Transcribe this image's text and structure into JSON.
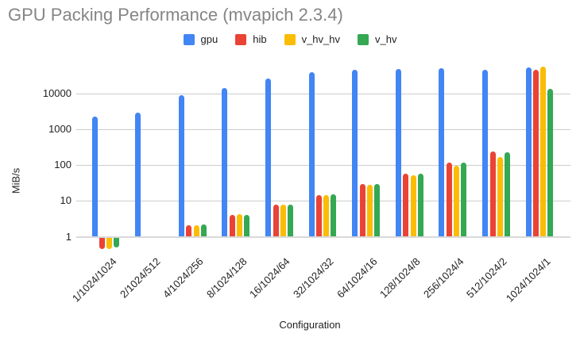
{
  "title": "GPU Packing Performance (mvapich 2.3.4)",
  "colors": {
    "gpu": "#4285F4",
    "hib": "#EA4335",
    "v_hv_hv": "#FBBC04",
    "v_hv": "#34A853",
    "title_text": "#858585",
    "gridline": "#cccccc",
    "axis_text": "#222222"
  },
  "chart_data": {
    "type": "bar",
    "title": "GPU Packing Performance (mvapich 2.3.4)",
    "xlabel": "Configuration",
    "ylabel": "MiB/s",
    "y_scale": "log",
    "y_ticks": [
      1,
      10,
      100,
      1000,
      10000
    ],
    "ylim": [
      0.4,
      60000
    ],
    "grid": true,
    "legend_position": "top",
    "categories": [
      "1/1024/1024",
      "2/1024/512",
      "4/1024/256",
      "8/1024/128",
      "16/1024/64",
      "32/1024/32",
      "64/1024/16",
      "128/1024/8",
      "256/1024/4",
      "512/1024/2",
      "1024/1024/1"
    ],
    "series": [
      {
        "name": "gpu",
        "color": "#4285F4",
        "values": [
          2250,
          2900,
          8700,
          13800,
          26000,
          38000,
          45000,
          47500,
          50000,
          46000,
          53500
        ]
      },
      {
        "name": "hib",
        "color": "#EA4335",
        "values": [
          0.5,
          null,
          2.1,
          4.1,
          7.7,
          14.5,
          29,
          58,
          115,
          240,
          46000
        ]
      },
      {
        "name": "v_hv_hv",
        "color": "#FBBC04",
        "values": [
          0.5,
          null,
          2.1,
          4.2,
          7.7,
          14.3,
          28,
          53,
          97,
          165,
          55000
        ]
      },
      {
        "name": "v_hv",
        "color": "#34A853",
        "values": [
          0.55,
          null,
          2.15,
          4.1,
          7.8,
          15,
          30,
          58,
          120,
          230,
          13300
        ]
      }
    ]
  }
}
